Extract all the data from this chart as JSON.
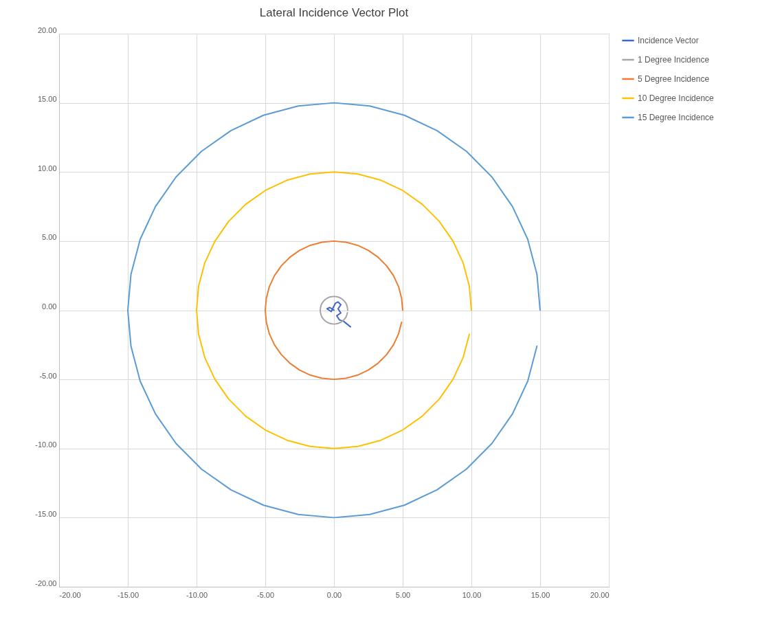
{
  "chart_data": {
    "type": "line",
    "title": "Lateral Incidence Vector Plot",
    "xlim": [
      -20,
      20
    ],
    "ylim": [
      -20,
      20
    ],
    "xticks": [
      {
        "value": -20,
        "label": "-20.00"
      },
      {
        "value": -15,
        "label": "-15.00"
      },
      {
        "value": -10,
        "label": "-10.00"
      },
      {
        "value": -5,
        "label": "-5.00"
      },
      {
        "value": 0,
        "label": "0.00"
      },
      {
        "value": 5,
        "label": "5.00"
      },
      {
        "value": 10,
        "label": "10.00"
      },
      {
        "value": 15,
        "label": "15.00"
      },
      {
        "value": 20,
        "label": "20.00"
      }
    ],
    "yticks": [
      {
        "value": -20,
        "label": "-20.00"
      },
      {
        "value": -15,
        "label": "-15.00"
      },
      {
        "value": -10,
        "label": "-10.00"
      },
      {
        "value": -5,
        "label": "-5.00"
      },
      {
        "value": 0,
        "label": "0.00"
      },
      {
        "value": 5,
        "label": "5.00"
      },
      {
        "value": 10,
        "label": "10.00"
      },
      {
        "value": 15,
        "label": "15.00"
      },
      {
        "value": 20,
        "label": "20.00"
      }
    ],
    "grid": true,
    "legend": "right",
    "series": [
      {
        "name": "Incidence Vector",
        "color": "#3f66c9",
        "x": [
          0,
          -0.3,
          -0.5,
          -0.2,
          0.1,
          0.3,
          0.5,
          0.3,
          0.5,
          0.2,
          0.4,
          0.7,
          1.2
        ],
        "values": [
          0,
          0.2,
          0.1,
          -0.1,
          0.5,
          0.6,
          0.4,
          0.1,
          -0.2,
          -0.4,
          -0.7,
          -0.8,
          -1.2
        ]
      },
      {
        "name": "1 Degree Incidence",
        "color": "#a5a5a5",
        "x": [
          1,
          0.98,
          0.94,
          0.87,
          0.77,
          0.64,
          0.5,
          0.34,
          0.17,
          0,
          -0.17,
          -0.34,
          -0.5,
          -0.64,
          -0.77,
          -0.87,
          -0.94,
          -0.98,
          -1,
          -0.98,
          -0.94,
          -0.87,
          -0.77,
          -0.64,
          -0.5,
          -0.34,
          -0.17,
          0,
          0.17,
          0.34,
          0.5,
          0.64,
          0.77,
          0.87,
          0.94,
          0.98,
          1
        ],
        "values": [
          0,
          0.17,
          0.34,
          0.5,
          0.64,
          0.77,
          0.87,
          0.94,
          0.98,
          1,
          0.98,
          0.94,
          0.87,
          0.77,
          0.64,
          0.5,
          0.34,
          0.17,
          0,
          -0.17,
          -0.34,
          -0.5,
          -0.64,
          -0.77,
          -0.87,
          -0.94,
          -0.98,
          -1,
          -0.98,
          -0.94,
          -0.87,
          -0.77,
          -0.64,
          -0.5,
          -0.34,
          -0.17,
          0
        ]
      },
      {
        "name": "5 Degree Incidence",
        "color": "#ed7d31",
        "x": [
          5,
          4.92,
          4.7,
          4.33,
          3.83,
          3.21,
          2.5,
          1.71,
          0.87,
          0,
          -0.87,
          -1.71,
          -2.5,
          -3.21,
          -3.83,
          -4.33,
          -4.7,
          -4.92,
          -5,
          -4.92,
          -4.7,
          -4.33,
          -3.83,
          -3.21,
          -2.5,
          -1.71,
          -0.87,
          0,
          0.87,
          1.71,
          2.5,
          3.21,
          3.83,
          4.33,
          4.7,
          4.92,
          5
        ],
        "values": [
          0,
          0.87,
          1.71,
          2.5,
          3.21,
          3.83,
          4.33,
          4.7,
          4.92,
          5,
          4.92,
          4.7,
          4.33,
          3.83,
          3.21,
          2.5,
          1.71,
          0.87,
          0,
          -0.87,
          -1.71,
          -2.5,
          -3.21,
          -3.83,
          -4.33,
          -4.7,
          -4.92,
          -5,
          -4.92,
          -4.7,
          -4.33,
          -3.83,
          -3.21,
          -2.5,
          -1.71,
          -0.87,
          0
        ]
      },
      {
        "name": "10 Degree Incidence",
        "color": "#ffc000",
        "x": [
          10,
          9.85,
          9.4,
          8.66,
          7.66,
          6.43,
          5,
          3.42,
          1.74,
          0,
          -1.74,
          -3.42,
          -5,
          -6.43,
          -7.66,
          -8.66,
          -9.4,
          -9.85,
          -10,
          -9.85,
          -9.4,
          -8.66,
          -7.66,
          -6.43,
          -5,
          -3.42,
          -1.74,
          0,
          1.74,
          3.42,
          5,
          6.43,
          7.66,
          8.66,
          9.4,
          9.85,
          10
        ],
        "values": [
          0,
          1.74,
          3.42,
          5,
          6.43,
          7.66,
          8.66,
          9.4,
          9.85,
          10,
          9.85,
          9.4,
          8.66,
          7.66,
          6.43,
          5,
          3.42,
          1.74,
          0,
          -1.74,
          -3.42,
          -5,
          -6.43,
          -7.66,
          -8.66,
          -9.4,
          -9.85,
          -10,
          -9.85,
          -9.4,
          -8.66,
          -7.66,
          -6.43,
          -5,
          -3.42,
          -1.74,
          0
        ]
      },
      {
        "name": "15 Degree Incidence",
        "color": "#5b9bd5",
        "x": [
          15,
          14.77,
          14.1,
          12.99,
          11.49,
          9.64,
          7.5,
          5.13,
          2.6,
          0,
          -2.6,
          -5.13,
          -7.5,
          -9.64,
          -11.49,
          -12.99,
          -14.1,
          -14.77,
          -15,
          -14.77,
          -14.1,
          -12.99,
          -11.49,
          -9.64,
          -7.5,
          -5.13,
          -2.6,
          0,
          2.6,
          5.13,
          7.5,
          9.64,
          11.49,
          12.99,
          14.1,
          14.77,
          15
        ],
        "values": [
          0,
          2.6,
          5.13,
          7.5,
          9.64,
          11.49,
          12.99,
          14.1,
          14.77,
          15,
          14.77,
          14.1,
          12.99,
          11.49,
          9.64,
          7.5,
          5.13,
          2.6,
          0,
          -2.6,
          -5.13,
          -7.5,
          -9.64,
          -11.49,
          -12.99,
          -14.1,
          -14.77,
          -15,
          -14.77,
          -14.1,
          -12.99,
          -11.49,
          -9.64,
          -7.5,
          -5.13,
          -2.6,
          0
        ]
      }
    ]
  }
}
